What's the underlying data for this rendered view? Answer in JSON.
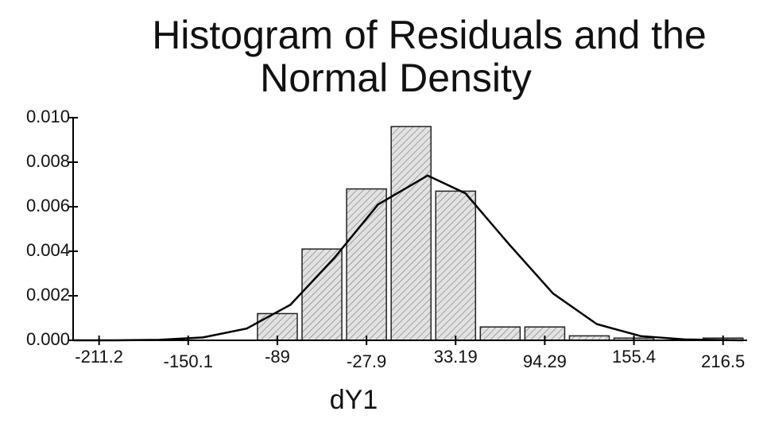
{
  "chart_data": {
    "type": "histogram",
    "title": [
      "Histogram of Residuals and the",
      "Normal Density"
    ],
    "x_label": "dY1",
    "bins": [
      -104.275,
      -73.725,
      -43.175,
      -12.625,
      17.925,
      48.475,
      79.025,
      109.575,
      140.125,
      170.675,
      201.225,
      231.775
    ],
    "counts": [
      0.0012,
      0.0041,
      0.0068,
      0.0096,
      0.0067,
      0.0006,
      0.0006,
      0.0002,
      0.0001,
      0,
      0.0001
    ],
    "color": "#d4d4d4",
    "density_curve": {
      "x": [
        -229,
        -200,
        -170,
        -140,
        -110,
        -80,
        -50,
        -20,
        14,
        40,
        70,
        100,
        130,
        160,
        190,
        230
      ],
      "values": [
        0,
        0,
        2e-05,
        0.00013,
        0.00053,
        0.0016,
        0.0037,
        0.0061,
        0.0074,
        0.0066,
        0.0043,
        0.0021,
        0.00073,
        0.00019,
        4e-05,
        0
      ],
      "color": "#000000"
    },
    "xlim": [
      -229,
      233
    ],
    "xticks": [
      -211.2,
      -150.1,
      -89,
      -27.9,
      33.19,
      94.29,
      155.4,
      216.5
    ],
    "ylim": [
      0,
      0.01
    ],
    "yticks": [
      {
        "value": 0,
        "label": "0.000"
      },
      {
        "value": 0.002,
        "label": "0.002"
      },
      {
        "value": 0.004,
        "label": "0.004"
      },
      {
        "value": 0.006,
        "label": "0.006"
      },
      {
        "value": 0.008,
        "label": "0.008"
      },
      {
        "value": 0.01,
        "label": "0.010"
      }
    ]
  }
}
